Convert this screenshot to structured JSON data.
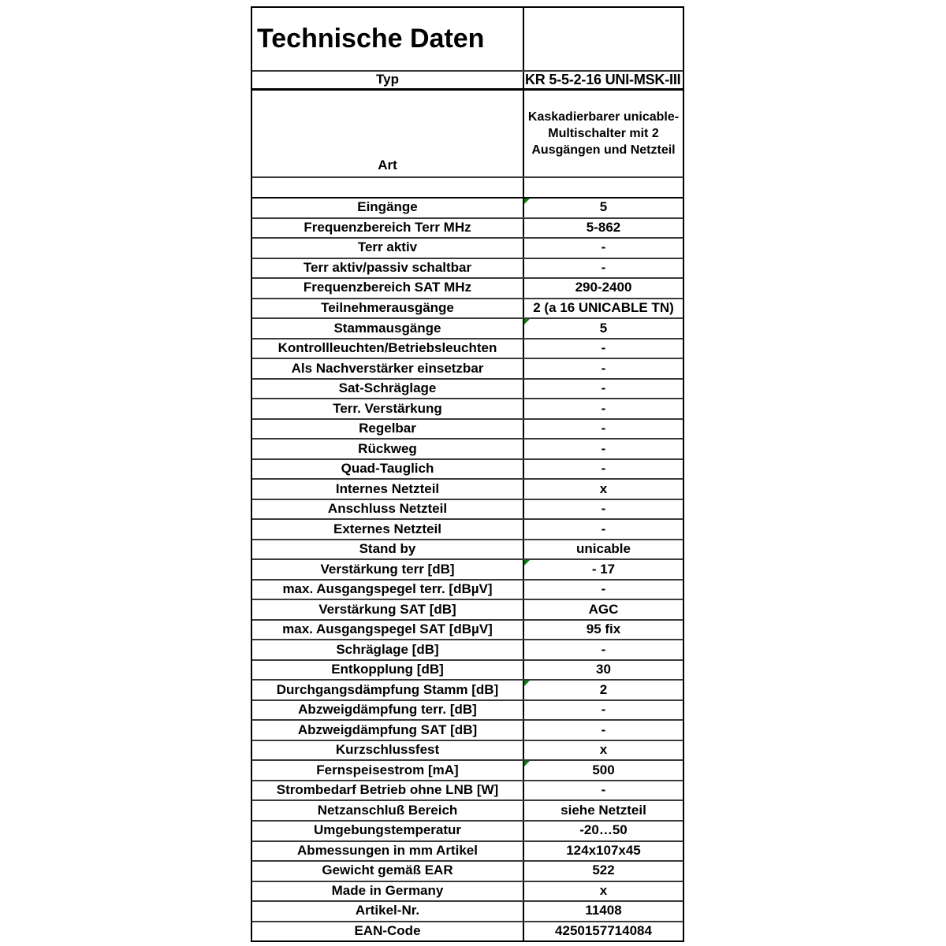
{
  "table": {
    "title": "Technische Daten",
    "colors": {
      "border": "#000000",
      "gridline": "#3a3a3a",
      "indicator_green": "#107c10",
      "text": "#000000",
      "background": "#ffffff"
    },
    "typ": {
      "label": "Typ",
      "value": "KR 5-5-2-16 UNI-MSK-III"
    },
    "art": {
      "label": "Art",
      "value": "Kaskadierbarer unicable-Multischalter mit 2 Ausgängen und Netzteil"
    },
    "rows": [
      {
        "label": "Eingänge",
        "value": "5",
        "indicator": true
      },
      {
        "label": "Frequenzbereich Terr MHz",
        "value": "5-862",
        "indicator": false
      },
      {
        "label": "Terr aktiv",
        "value": "-",
        "indicator": false
      },
      {
        "label": "Terr aktiv/passiv schaltbar",
        "value": "-",
        "indicator": false
      },
      {
        "label": "Frequenzbereich SAT MHz",
        "value": "290-2400",
        "indicator": false
      },
      {
        "label": "Teilnehmerausgänge",
        "value": "2 (a 16 UNICABLE TN)",
        "indicator": false
      },
      {
        "label": "Stammausgänge",
        "value": "5",
        "indicator": true
      },
      {
        "label": "Kontrollleuchten/Betriebsleuchten",
        "value": "-",
        "indicator": false
      },
      {
        "label": "Als Nachverstärker einsetzbar",
        "value": "-",
        "indicator": false
      },
      {
        "label": "Sat-Schräglage",
        "value": "-",
        "indicator": false
      },
      {
        "label": "Terr. Verstärkung",
        "value": "-",
        "indicator": false
      },
      {
        "label": "Regelbar",
        "value": "-",
        "indicator": false
      },
      {
        "label": "Rückweg",
        "value": "-",
        "indicator": false
      },
      {
        "label": "Quad-Tauglich",
        "value": "-",
        "indicator": false
      },
      {
        "label": "Internes Netzteil",
        "value": "x",
        "indicator": false
      },
      {
        "label": "Anschluss Netzteil",
        "value": "-",
        "indicator": false
      },
      {
        "label": "Externes Netzteil",
        "value": "-",
        "indicator": false
      },
      {
        "label": "Stand by",
        "value": "unicable",
        "indicator": false
      },
      {
        "label": "Verstärkung terr [dB]",
        "value": "- 17",
        "indicator": true
      },
      {
        "label": "max. Ausgangspegel terr. [dBµV]",
        "value": "-",
        "indicator": false
      },
      {
        "label": "Verstärkung SAT [dB]",
        "value": "AGC",
        "indicator": false
      },
      {
        "label": "max. Ausgangspegel SAT [dBµV]",
        "value": "95 fix",
        "indicator": false
      },
      {
        "label": "Schräglage [dB]",
        "value": "-",
        "indicator": false
      },
      {
        "label": "Entkopplung [dB]",
        "value": "30",
        "indicator": false
      },
      {
        "label": "Durchgangsdämpfung Stamm [dB]",
        "value": "2",
        "indicator": true
      },
      {
        "label": "Abzweigdämpfung terr. [dB]",
        "value": "-",
        "indicator": false
      },
      {
        "label": "Abzweigdämpfung SAT [dB]",
        "value": "-",
        "indicator": false
      },
      {
        "label": "Kurzschlussfest",
        "value": "x",
        "indicator": false
      },
      {
        "label": "Fernspeisestrom [mA]",
        "value": "500",
        "indicator": true
      },
      {
        "label": "Strombedarf Betrieb ohne LNB [W]",
        "value": "-",
        "indicator": false
      },
      {
        "label": "Netzanschluß Bereich",
        "value": "siehe Netzteil",
        "indicator": false
      },
      {
        "label": "Umgebungstemperatur",
        "value": "-20…50",
        "indicator": false
      },
      {
        "label": "Abmessungen in mm Artikel",
        "value": "124x107x45",
        "indicator": false
      },
      {
        "label": "Gewicht gemäß EAR",
        "value": "522",
        "indicator": false
      },
      {
        "label": "Made in Germany",
        "value": "x",
        "indicator": false
      },
      {
        "label": "Artikel-Nr.",
        "value": "11408",
        "indicator": false
      },
      {
        "label": "EAN-Code",
        "value": "4250157714084",
        "indicator": false
      }
    ]
  }
}
